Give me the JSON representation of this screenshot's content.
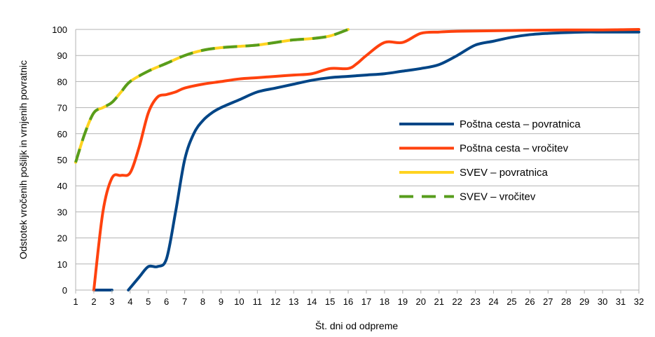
{
  "chart_data": {
    "type": "line",
    "title": "",
    "xlabel": "Št. dni od odpreme",
    "ylabel": "Odstotek vročenih pošiljk in vrnjenih povratnic",
    "xlim": [
      1,
      32
    ],
    "ylim": [
      0,
      100
    ],
    "x_ticks": [
      "1",
      "2",
      "3",
      "4",
      "5",
      "6",
      "7",
      "8",
      "9",
      "10",
      "11",
      "12",
      "13",
      "14",
      "15",
      "16",
      "17",
      "18",
      "19",
      "20",
      "21",
      "22",
      "23",
      "24",
      "25",
      "26",
      "27",
      "28",
      "29",
      "30",
      "31",
      "32"
    ],
    "y_ticks": [
      "0",
      "10",
      "20",
      "30",
      "40",
      "50",
      "60",
      "70",
      "80",
      "90",
      "100"
    ],
    "grid": "horizontal",
    "legend_position": "right",
    "series": [
      {
        "name": "Poštna cesta – povratnica",
        "color": "#004586",
        "style": "solid",
        "segments": [
          [
            [
              2,
              0
            ],
            [
              3,
              0
            ]
          ],
          [
            [
              3.9,
              0
            ],
            [
              4.5,
              5
            ],
            [
              5,
              9
            ],
            [
              5.5,
              9
            ],
            [
              6,
              12
            ],
            [
              6.5,
              30
            ],
            [
              7,
              50
            ],
            [
              7.5,
              60
            ],
            [
              8,
              65
            ],
            [
              8.5,
              68
            ],
            [
              9,
              70
            ],
            [
              10,
              73
            ],
            [
              11,
              76
            ],
            [
              12,
              77.5
            ],
            [
              13,
              79
            ],
            [
              14,
              80.5
            ],
            [
              15,
              81.5
            ],
            [
              16,
              82
            ],
            [
              17,
              82.5
            ],
            [
              18,
              83
            ],
            [
              19,
              84
            ],
            [
              20,
              85
            ],
            [
              21,
              86.5
            ],
            [
              22,
              90
            ],
            [
              23,
              94
            ],
            [
              24,
              95.5
            ],
            [
              25,
              97
            ],
            [
              26,
              98
            ],
            [
              27,
              98.5
            ],
            [
              28,
              98.8
            ],
            [
              29,
              99
            ],
            [
              30,
              99
            ],
            [
              31,
              99
            ],
            [
              32,
              99
            ]
          ]
        ]
      },
      {
        "name": "Poštna cesta – vročitev",
        "color": "#ff420e",
        "style": "solid",
        "segments": [
          [
            [
              2,
              0
            ],
            [
              2.5,
              30
            ],
            [
              3,
              43
            ],
            [
              3.5,
              44
            ],
            [
              4,
              45
            ],
            [
              4.5,
              55
            ],
            [
              5,
              68
            ],
            [
              5.5,
              74
            ],
            [
              6,
              75
            ],
            [
              6.5,
              76
            ],
            [
              7,
              77.5
            ],
            [
              8,
              79
            ],
            [
              9,
              80
            ],
            [
              10,
              81
            ],
            [
              11,
              81.5
            ],
            [
              12,
              82
            ],
            [
              13,
              82.5
            ],
            [
              14,
              83
            ],
            [
              15,
              85
            ],
            [
              16,
              85
            ],
            [
              16.5,
              87
            ],
            [
              17,
              90
            ],
            [
              18,
              95
            ],
            [
              19,
              95
            ],
            [
              20,
              98.5
            ],
            [
              21,
              99
            ],
            [
              22,
              99.3
            ],
            [
              24,
              99.5
            ],
            [
              26,
              99.7
            ],
            [
              28,
              99.8
            ],
            [
              30,
              99.8
            ],
            [
              31,
              99.9
            ],
            [
              32,
              100
            ]
          ]
        ]
      },
      {
        "name": "SVEV –  povratnica",
        "color": "#ffd320",
        "style": "solid",
        "segments": [
          [
            [
              1,
              49
            ],
            [
              1.5,
              60
            ],
            [
              2,
              68
            ],
            [
              2.5,
              70
            ],
            [
              3,
              72
            ],
            [
              3.5,
              76
            ],
            [
              4,
              80
            ],
            [
              5,
              84
            ],
            [
              6,
              87
            ],
            [
              7,
              90
            ],
            [
              8,
              92
            ],
            [
              9,
              93
            ],
            [
              10,
              93.5
            ],
            [
              11,
              94
            ],
            [
              12,
              95
            ],
            [
              13,
              96
            ],
            [
              14,
              96.5
            ],
            [
              15,
              97.5
            ],
            [
              16,
              100
            ]
          ]
        ]
      },
      {
        "name": "SVEV –  vročitev",
        "color": "#579d1c",
        "style": "dashed",
        "segments": [
          [
            [
              1,
              49
            ],
            [
              1.5,
              60
            ],
            [
              2,
              68
            ],
            [
              2.5,
              70
            ],
            [
              3,
              72
            ],
            [
              3.5,
              76
            ],
            [
              4,
              80
            ],
            [
              5,
              84
            ],
            [
              6,
              87
            ],
            [
              7,
              90
            ],
            [
              8,
              92
            ],
            [
              9,
              93
            ],
            [
              10,
              93.5
            ],
            [
              11,
              94
            ],
            [
              12,
              95
            ],
            [
              13,
              96
            ],
            [
              14,
              96.5
            ],
            [
              15,
              97.5
            ],
            [
              16,
              100
            ]
          ]
        ]
      }
    ]
  }
}
